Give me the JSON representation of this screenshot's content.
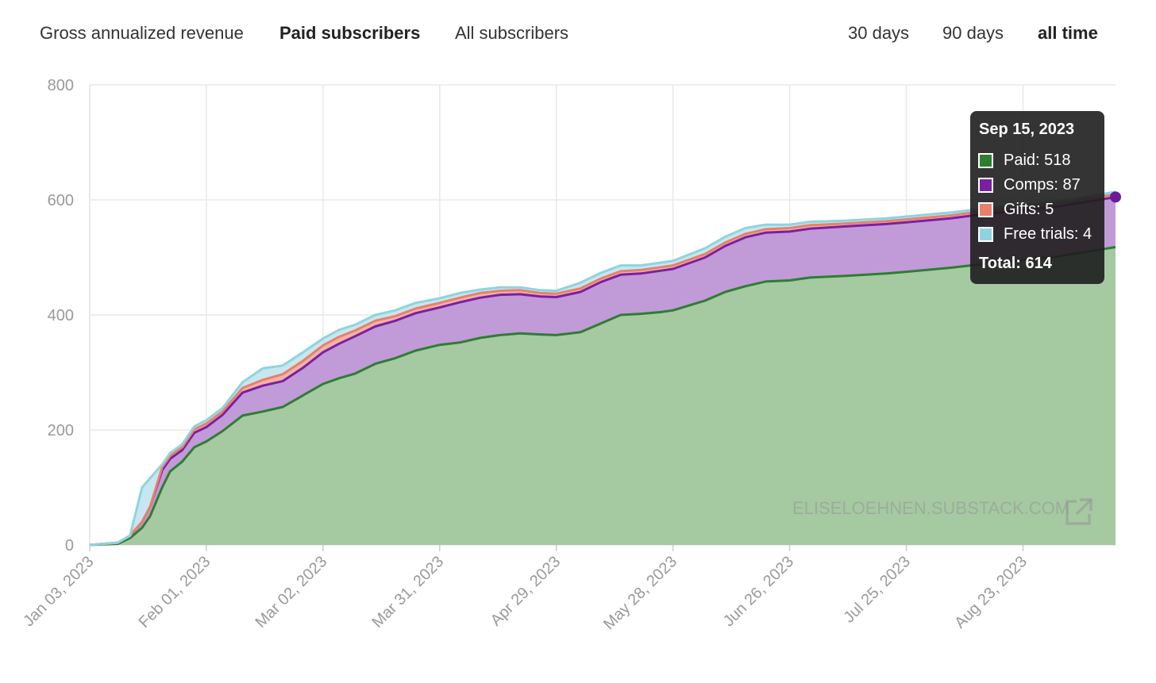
{
  "tabs": {
    "metrics": [
      {
        "label": "Gross annualized revenue",
        "active": false
      },
      {
        "label": "Paid subscribers",
        "active": true
      },
      {
        "label": "All subscribers",
        "active": false
      }
    ],
    "ranges": [
      {
        "label": "30 days",
        "active": false
      },
      {
        "label": "90 days",
        "active": false
      },
      {
        "label": "all time",
        "active": true
      }
    ]
  },
  "watermark": {
    "text": "ELISELOEHNEN.SUBSTACK.COM",
    "icon": "external-link-icon"
  },
  "tooltip": {
    "date": "Sep 15, 2023",
    "rows": [
      {
        "label": "Paid: 518",
        "color": "#2e7d32"
      },
      {
        "label": "Comps: 87",
        "color": "#7b1fa2"
      },
      {
        "label": "Gifts: 5",
        "color": "#e8806a"
      },
      {
        "label": "Free trials: 4",
        "color": "#8fd3e0"
      }
    ],
    "total": "Total: 614"
  },
  "chart_data": {
    "type": "area",
    "stacked": true,
    "title": "",
    "xlabel": "",
    "ylabel": "",
    "ylim": [
      0,
      800
    ],
    "y_ticks": [
      0,
      200,
      400,
      600,
      800
    ],
    "xlim": [
      "2023-01-03",
      "2023-09-15"
    ],
    "x_tick_labels": [
      "Jan 03, 2023",
      "Feb 01, 2023",
      "Mar 02, 2023",
      "Mar 31, 2023",
      "Apr 29, 2023",
      "May 28, 2023",
      "Jun 26, 2023",
      "Jul 25, 2023",
      "Aug 23, 2023"
    ],
    "grid": true,
    "x": [
      "2023-01-03",
      "2023-01-10",
      "2023-01-13",
      "2023-01-16",
      "2023-01-18",
      "2023-01-21",
      "2023-01-23",
      "2023-01-26",
      "2023-01-29",
      "2023-02-01",
      "2023-02-05",
      "2023-02-10",
      "2023-02-15",
      "2023-02-20",
      "2023-02-25",
      "2023-03-02",
      "2023-03-06",
      "2023-03-10",
      "2023-03-15",
      "2023-03-20",
      "2023-03-25",
      "2023-03-31",
      "2023-04-05",
      "2023-04-10",
      "2023-04-15",
      "2023-04-20",
      "2023-04-25",
      "2023-04-29",
      "2023-05-05",
      "2023-05-10",
      "2023-05-15",
      "2023-05-20",
      "2023-05-25",
      "2023-05-28",
      "2023-06-05",
      "2023-06-10",
      "2023-06-15",
      "2023-06-20",
      "2023-06-26",
      "2023-07-01",
      "2023-07-10",
      "2023-07-20",
      "2023-07-25",
      "2023-08-05",
      "2023-08-15",
      "2023-08-23",
      "2023-09-01",
      "2023-09-08",
      "2023-09-15"
    ],
    "series": [
      {
        "name": "Paid",
        "color": "#2e7d32",
        "values": [
          0,
          2,
          12,
          30,
          50,
          100,
          128,
          145,
          170,
          180,
          198,
          225,
          232,
          240,
          260,
          280,
          290,
          298,
          315,
          325,
          338,
          348,
          352,
          360,
          365,
          368,
          366,
          365,
          370,
          385,
          400,
          402,
          405,
          408,
          425,
          440,
          450,
          458,
          460,
          465,
          468,
          472,
          475,
          482,
          490,
          495,
          502,
          510,
          518
        ]
      },
      {
        "name": "Comps",
        "color": "#7b1fa2",
        "values": [
          0,
          2,
          4,
          10,
          16,
          30,
          22,
          20,
          25,
          25,
          28,
          40,
          45,
          45,
          48,
          55,
          60,
          65,
          65,
          65,
          65,
          65,
          70,
          70,
          70,
          68,
          66,
          66,
          70,
          72,
          70,
          70,
          72,
          72,
          75,
          80,
          85,
          85,
          85,
          85,
          86,
          86,
          86,
          86,
          87,
          87,
          87,
          87,
          87
        ]
      },
      {
        "name": "Gifts",
        "color": "#e8806a",
        "values": [
          0,
          0,
          0,
          0,
          0,
          5,
          5,
          5,
          6,
          6,
          6,
          8,
          10,
          12,
          12,
          12,
          12,
          10,
          10,
          8,
          8,
          8,
          8,
          8,
          7,
          7,
          6,
          6,
          6,
          6,
          6,
          6,
          6,
          6,
          6,
          6,
          6,
          6,
          6,
          6,
          5,
          5,
          5,
          5,
          5,
          5,
          5,
          5,
          5
        ]
      },
      {
        "name": "Free trials",
        "color": "#8fd3e0",
        "values": [
          0,
          0,
          0,
          60,
          50,
          5,
          5,
          5,
          5,
          6,
          6,
          10,
          20,
          15,
          15,
          12,
          12,
          10,
          10,
          10,
          10,
          8,
          8,
          6,
          6,
          5,
          5,
          5,
          10,
          10,
          10,
          8,
          8,
          8,
          10,
          10,
          10,
          8,
          6,
          6,
          5,
          5,
          5,
          5,
          4,
          4,
          4,
          4,
          4
        ]
      }
    ]
  }
}
